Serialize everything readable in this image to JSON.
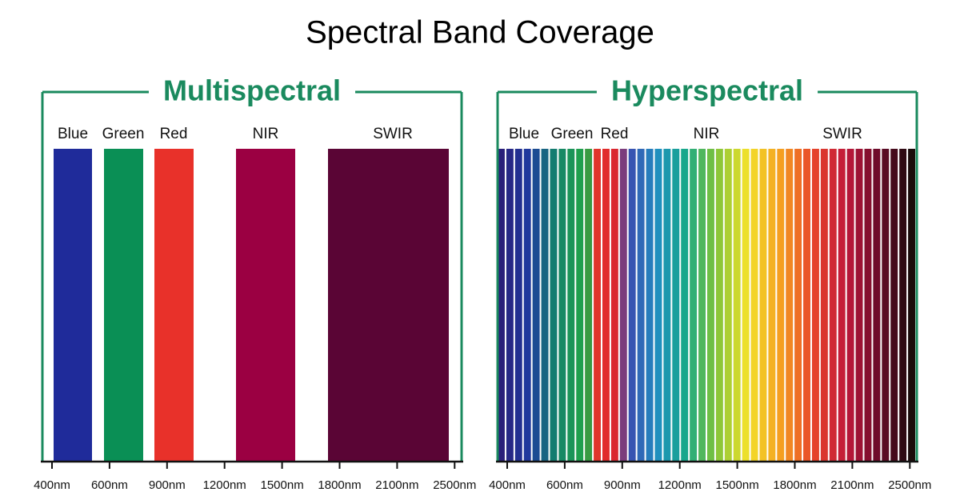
{
  "title": "Spectral Band Coverage",
  "panels": [
    {
      "title": "Multispectral",
      "bands": [
        "Blue",
        "Green",
        "Red",
        "NIR",
        "SWIR"
      ],
      "ticks": [
        "400nm",
        "600nm",
        "900nm",
        "1200nm",
        "1500nm",
        "1800nm",
        "2100nm",
        "2500nm"
      ]
    },
    {
      "title": "Hyperspectral",
      "bands": [
        "Blue",
        "Green",
        "Red",
        "NIR",
        "SWIR"
      ],
      "ticks": [
        "400nm",
        "600nm",
        "900nm",
        "1200nm",
        "1500nm",
        "1800nm",
        "2100nm",
        "2500nm"
      ]
    }
  ]
}
